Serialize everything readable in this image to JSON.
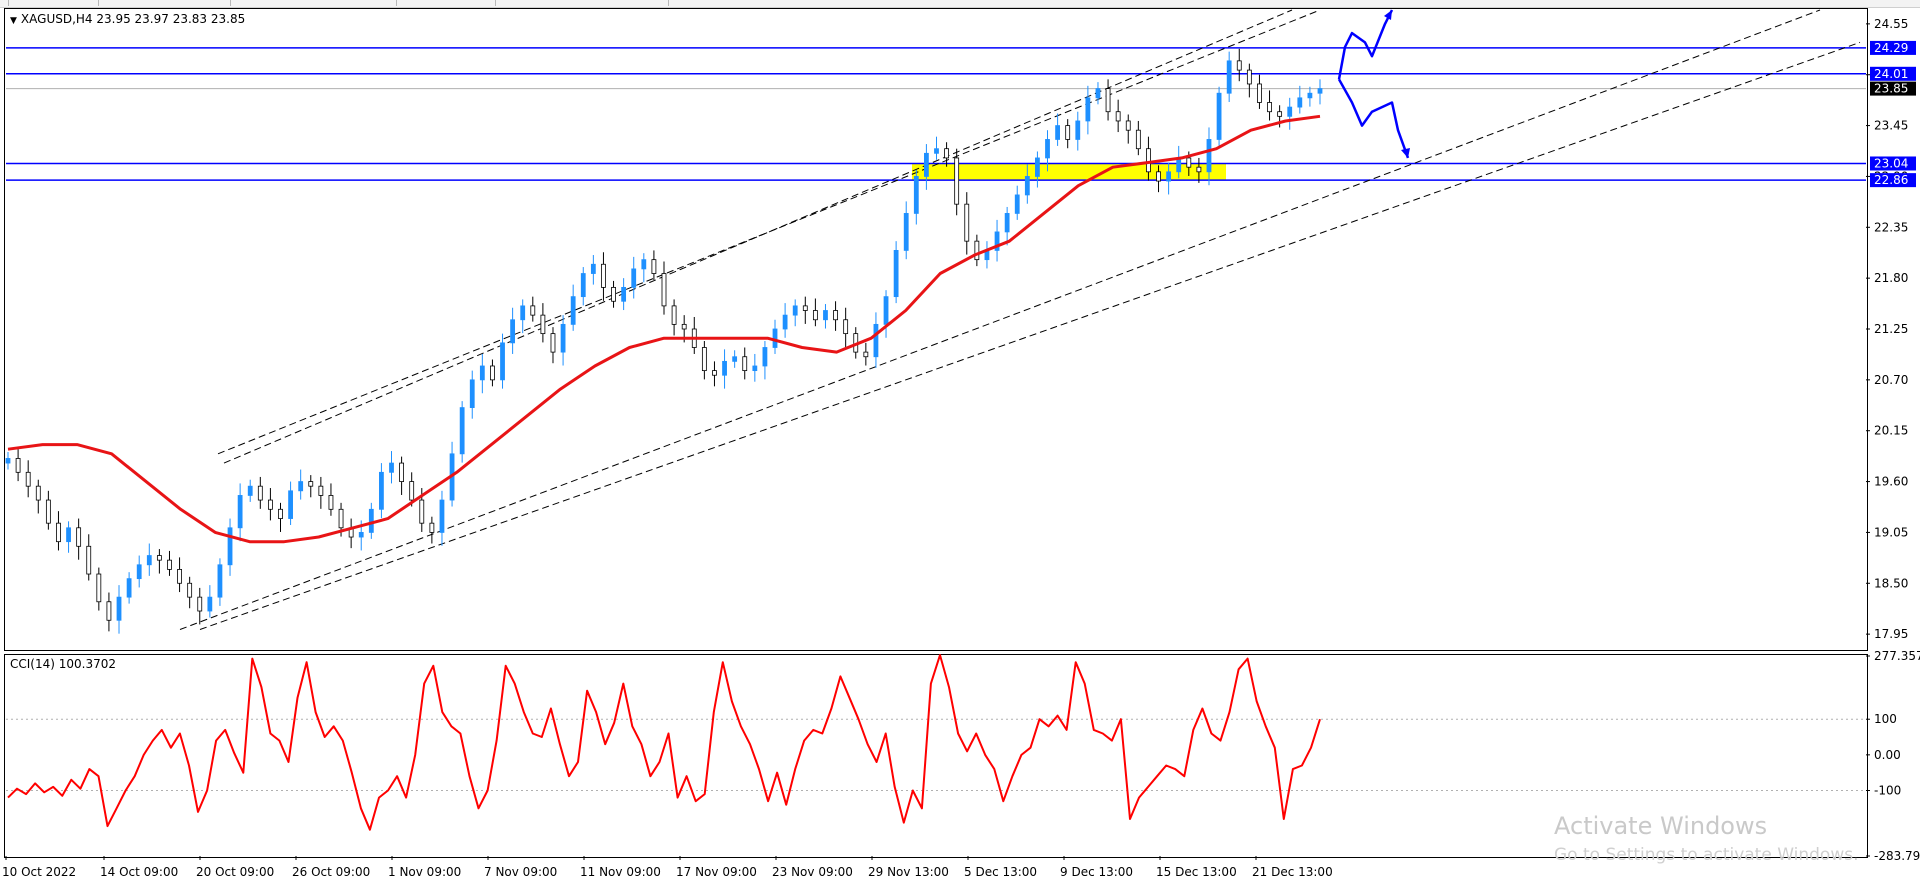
{
  "header": {
    "symbol_line": "XAGUSD,H4  23.95 23.97 23.83 23.85"
  },
  "indicator": {
    "label": "CCI(14) 100.3702"
  },
  "watermark": {
    "line1": "Activate Windows",
    "line2": "Go to Settings to activate Windows."
  },
  "colors": {
    "bull_candle": "#1e90ff",
    "bear_candle": "#000000",
    "moving_average": "#e81416",
    "cci_line": "#ff0000",
    "level_line": "#0000ff",
    "support_zone": "#ffff00",
    "channel_lines": "#000000"
  },
  "chart_data": [
    {
      "type": "candlestick",
      "symbol": "XAGUSD",
      "timeframe": "H4",
      "ylim": [
        17.8,
        24.7
      ],
      "xlim": [
        "10 Oct 2022",
        "27 Dec 2022"
      ],
      "y_ticks": [
        "24.55",
        "24.00",
        "23.45",
        "22.90",
        "22.35",
        "21.80",
        "21.25",
        "20.70",
        "20.15",
        "19.60",
        "19.05",
        "18.50",
        "17.95"
      ],
      "x_ticks": [
        "10 Oct 2022",
        "14 Oct 09:00",
        "20 Oct 09:00",
        "26 Oct 09:00",
        "1 Nov 09:00",
        "7 Nov 09:00",
        "11 Nov 09:00",
        "17 Nov 09:00",
        "23 Nov 09:00",
        "29 Nov 13:00",
        "5 Dec 13:00",
        "9 Dec 13:00",
        "15 Dec 13:00",
        "21 Dec 13:00"
      ],
      "horizontal_levels": [
        {
          "value": 24.29,
          "label": "24.29"
        },
        {
          "value": 24.01,
          "label": "24.01"
        },
        {
          "value": 23.04,
          "label": "23.04"
        },
        {
          "value": 22.86,
          "label": "22.86"
        }
      ],
      "current_price": {
        "value": 23.85,
        "label": "23.85"
      },
      "support_zone": {
        "from": 22.86,
        "to": 23.04
      },
      "close_series": [
        19.85,
        19.7,
        19.55,
        19.4,
        19.15,
        18.95,
        19.1,
        18.9,
        18.6,
        18.3,
        18.1,
        18.35,
        18.55,
        18.7,
        18.8,
        18.75,
        18.65,
        18.5,
        18.35,
        18.2,
        18.35,
        18.7,
        19.1,
        19.45,
        19.55,
        19.4,
        19.3,
        19.2,
        19.5,
        19.6,
        19.55,
        19.45,
        19.3,
        19.1,
        19.0,
        19.05,
        19.3,
        19.7,
        19.8,
        19.6,
        19.4,
        19.15,
        19.05,
        19.4,
        19.9,
        20.4,
        20.7,
        20.85,
        20.7,
        21.1,
        21.35,
        21.5,
        21.4,
        21.2,
        21.0,
        21.3,
        21.6,
        21.85,
        21.95,
        21.7,
        21.55,
        21.7,
        21.9,
        22.0,
        21.85,
        21.5,
        21.3,
        21.25,
        21.05,
        20.8,
        20.75,
        20.9,
        20.95,
        20.8,
        20.85,
        21.05,
        21.25,
        21.4,
        21.5,
        21.45,
        21.35,
        21.45,
        21.35,
        21.2,
        21.0,
        20.95,
        21.3,
        21.6,
        22.1,
        22.5,
        22.9,
        23.15,
        23.2,
        23.1,
        22.6,
        22.2,
        22.0,
        22.1,
        22.3,
        22.5,
        22.7,
        22.9,
        23.1,
        23.3,
        23.45,
        23.3,
        23.5,
        23.75,
        23.85,
        23.6,
        23.5,
        23.4,
        23.2,
        22.95,
        22.85,
        22.95,
        23.1,
        23.0,
        22.95,
        23.3,
        23.8,
        24.15,
        24.05,
        23.9,
        23.7,
        23.6,
        23.55,
        23.65,
        23.75,
        23.8,
        23.85
      ],
      "moving_average": [
        19.95,
        20.0,
        20.0,
        19.9,
        19.6,
        19.3,
        19.05,
        18.95,
        18.95,
        19.0,
        19.1,
        19.2,
        19.45,
        19.7,
        20.0,
        20.3,
        20.6,
        20.85,
        21.05,
        21.15,
        21.15,
        21.15,
        21.15,
        21.05,
        21.0,
        21.15,
        21.45,
        21.85,
        22.05,
        22.2,
        22.5,
        22.8,
        23.0,
        23.05,
        23.1,
        23.2,
        23.4,
        23.5,
        23.55
      ],
      "annotations": [
        "ascending channel (dashed trend lines)",
        "blue projection arrows"
      ]
    },
    {
      "type": "line",
      "indicator": "CCI(14)",
      "ylim": [
        -283.796,
        277.357
      ],
      "y_ticks": [
        "277.357",
        "100",
        "0.00",
        "-100",
        "-283.796"
      ],
      "reference_levels": [
        100,
        -100
      ],
      "values": [
        -120,
        -95,
        -110,
        -80,
        -105,
        -90,
        -115,
        -70,
        -95,
        -40,
        -60,
        -200,
        -150,
        -100,
        -60,
        0,
        40,
        70,
        20,
        60,
        -30,
        -160,
        -100,
        40,
        70,
        5,
        -50,
        270,
        190,
        60,
        40,
        -20,
        160,
        260,
        120,
        50,
        80,
        40,
        -50,
        -150,
        -210,
        -120,
        -100,
        -60,
        -120,
        0,
        200,
        250,
        120,
        80,
        60,
        -60,
        -150,
        -100,
        40,
        250,
        200,
        120,
        60,
        50,
        130,
        30,
        -60,
        -20,
        180,
        120,
        30,
        90,
        200,
        80,
        30,
        -60,
        -20,
        60,
        -120,
        -60,
        -130,
        -110,
        120,
        260,
        150,
        80,
        30,
        -40,
        -130,
        -50,
        -140,
        -40,
        40,
        70,
        60,
        130,
        220,
        160,
        100,
        30,
        -20,
        60,
        -90,
        -190,
        -100,
        -150,
        200,
        280,
        190,
        60,
        10,
        60,
        0,
        -40,
        -130,
        -60,
        0,
        20,
        100,
        80,
        110,
        70,
        260,
        200,
        70,
        60,
        40,
        100,
        -180,
        -120,
        -90,
        -60,
        -30,
        -40,
        -60,
        70,
        130,
        60,
        40,
        120,
        240,
        270,
        150,
        80,
        20,
        -180,
        -40,
        -30,
        20,
        100
      ]
    }
  ]
}
